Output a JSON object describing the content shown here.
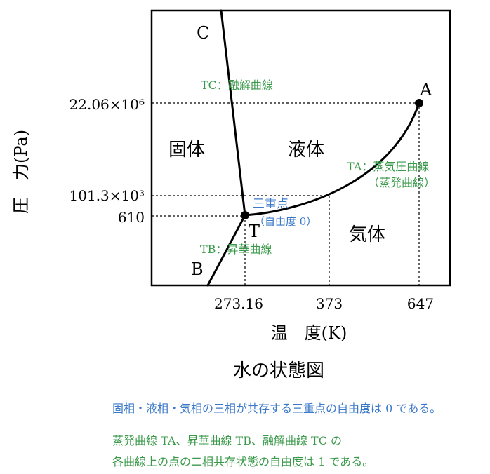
{
  "title": "水の状態図",
  "axes": {
    "ylabel": "圧　力(Pa)",
    "xlabel": "温　度(K)",
    "yticks": [
      "22.06×10⁶",
      "101.3×10³",
      "610"
    ],
    "xticks": [
      "273.16",
      "373",
      "647"
    ]
  },
  "points": {
    "A": "A",
    "B": "B",
    "C": "C",
    "T": "T"
  },
  "regions": {
    "solid": "固体",
    "liquid": "液体",
    "gas": "気体"
  },
  "curve_labels": {
    "tc": "TC：融解曲線",
    "ta": "TA：蒸気圧曲線",
    "ta_alt": "（蒸発曲線）",
    "tb": "TB：昇華曲線"
  },
  "triple_point": {
    "label": "三重点",
    "sub": "（自由度 0）"
  },
  "notes": {
    "line1": "固相・液相・気相の三相が共存する三重点の自由度は 0 である。",
    "line2": "蒸発曲線 TA、昇華曲線 TB、融解曲線 TC の",
    "line3": "各曲線上の点の二相共存状態の自由度は 1 である。"
  },
  "colors": {
    "axis": "#000000",
    "green": "#3a9a4a",
    "blue": "#3a78c9"
  }
}
